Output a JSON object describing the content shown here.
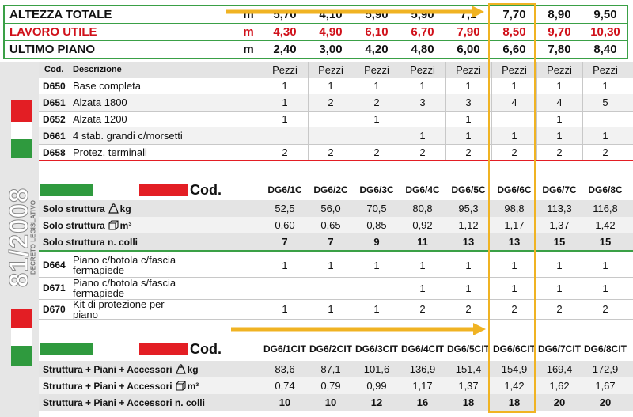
{
  "top_rows": [
    {
      "label": "ALTEZZA TOTALE",
      "unit": "m",
      "values": [
        "5,70",
        "4,10",
        "5,90",
        "5,90",
        "7,1",
        "7,70",
        "8,90",
        "9,50"
      ],
      "color": "#111111"
    },
    {
      "label": "LAVORO UTILE",
      "unit": "m",
      "values": [
        "4,30",
        "4,90",
        "6,10",
        "6,70",
        "7,90",
        "8,50",
        "9,70",
        "10,30"
      ],
      "color": "#d0101a"
    },
    {
      "label": "ULTIMO PIANO",
      "unit": "m",
      "values": [
        "2,40",
        "3,00",
        "4,20",
        "4,80",
        "6,00",
        "6,60",
        "7,80",
        "8,40"
      ],
      "color": "#111111"
    }
  ],
  "parts_header": {
    "cod": "Cod.",
    "descr": "Descrizione",
    "cols": [
      "Pezzi",
      "Pezzi",
      "Pezzi",
      "Pezzi",
      "Pezzi",
      "Pezzi",
      "Pezzi",
      "Pezzi"
    ]
  },
  "parts": [
    {
      "cod": "D650",
      "descr": "Base completa",
      "values": [
        "1",
        "1",
        "1",
        "1",
        "1",
        "1",
        "1",
        "1"
      ]
    },
    {
      "cod": "D651",
      "descr": "Alzata 1800",
      "values": [
        "1",
        "2",
        "2",
        "3",
        "3",
        "4",
        "4",
        "5"
      ]
    },
    {
      "cod": "D652",
      "descr": "Alzata 1200",
      "values": [
        "1",
        "",
        "1",
        "",
        "1",
        "",
        "1",
        ""
      ]
    },
    {
      "cod": "D661",
      "descr": "4 stab. grandi c/morsetti",
      "values": [
        "",
        "",
        "",
        "1",
        "1",
        "1",
        "1",
        "1"
      ]
    },
    {
      "cod": "D658",
      "descr": "Protez. terminali",
      "values": [
        "2",
        "2",
        "2",
        "2",
        "2",
        "2",
        "2",
        "2"
      ]
    }
  ],
  "struct_header": {
    "cod": "Cod.",
    "cols": [
      "DG6/1C",
      "DG6/2C",
      "DG6/3C",
      "DG6/4C",
      "DG6/5C",
      "DG6/6C",
      "DG6/7C",
      "DG6/8C"
    ]
  },
  "struct_rows": [
    {
      "label": "Solo struttura",
      "unit": "kg",
      "icon": "weight-icon",
      "values": [
        "52,5",
        "56,0",
        "70,5",
        "80,8",
        "95,3",
        "98,8",
        "113,3",
        "116,8"
      ]
    },
    {
      "label": "Solo struttura",
      "unit": "m³",
      "icon": "cube-icon",
      "values": [
        "0,60",
        "0,65",
        "0,85",
        "0,92",
        "1,12",
        "1,17",
        "1,37",
        "1,42"
      ]
    },
    {
      "label": "Solo struttura n. colli",
      "unit": "",
      "icon": "",
      "values": [
        "7",
        "7",
        "9",
        "11",
        "13",
        "13",
        "15",
        "15"
      ]
    }
  ],
  "accessories": [
    {
      "cod": "D664",
      "descr": "Piano c/botola c/fascia fermapiede",
      "values": [
        "1",
        "1",
        "1",
        "1",
        "1",
        "1",
        "1",
        "1"
      ]
    },
    {
      "cod": "D671",
      "descr": "Piano c/botola s/fascia fermapiede",
      "values": [
        "",
        "",
        "",
        "1",
        "1",
        "1",
        "1",
        "1"
      ]
    },
    {
      "cod": "D670",
      "descr": "Kit di protezione per piano",
      "values": [
        "1",
        "1",
        "1",
        "2",
        "2",
        "2",
        "2",
        "2"
      ]
    }
  ],
  "full_header": {
    "cod": "Cod.",
    "cols": [
      "DG6/1CIT",
      "DG6/2CIT",
      "DG6/3CIT",
      "DG6/4CIT",
      "DG6/5CIT",
      "DG6/6CIT",
      "DG6/7CIT",
      "DG6/8CIT"
    ]
  },
  "full_rows": [
    {
      "label": "Struttura + Piani + Accessori",
      "unit": "kg",
      "icon": "weight-icon",
      "values": [
        "83,6",
        "87,1",
        "101,6",
        "136,9",
        "151,4",
        "154,9",
        "169,4",
        "172,9"
      ]
    },
    {
      "label": "Struttura + Piani + Accessori",
      "unit": "m³",
      "icon": "cube-icon",
      "values": [
        "0,74",
        "0,79",
        "0,99",
        "1,17",
        "1,37",
        "1,42",
        "1,62",
        "1,67"
      ]
    },
    {
      "label": "Struttura + Piani + Accessori n. colli",
      "unit": "",
      "icon": "",
      "values": [
        "10",
        "10",
        "12",
        "16",
        "18",
        "18",
        "20",
        "20"
      ]
    }
  ],
  "side_text": {
    "number": "81/2008",
    "sub": "DECRETO LEGISLATIVO"
  },
  "colors": {
    "green": "#2f9a3e",
    "red": "#e31e24",
    "highlight": "#f0b323",
    "arrow": "#f0b323",
    "grey": "#e4e4e4"
  }
}
